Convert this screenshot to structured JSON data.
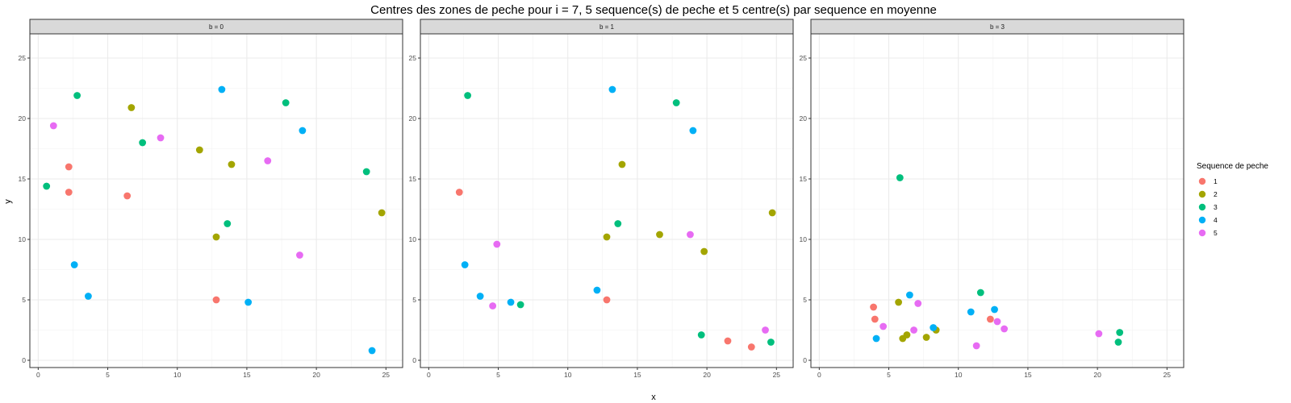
{
  "chart_data": {
    "type": "scatter",
    "title": "Centres des zones de peche pour i = 7, 5 sequence(s) de peche et 5 centre(s) par sequence en moyenne",
    "xlabel": "x",
    "ylabel": "y",
    "xlim": [
      -0.6,
      26.2
    ],
    "ylim": [
      -0.6,
      27.0
    ],
    "x_ticks": [
      0,
      5,
      10,
      15,
      20,
      25
    ],
    "y_ticks": [
      0,
      5,
      10,
      15,
      20,
      25
    ],
    "grid": true,
    "legend": {
      "title": "Sequence de peche",
      "placement": "right",
      "entries": [
        {
          "label": "1",
          "color": "#F8766D"
        },
        {
          "label": "2",
          "color": "#A3A500"
        },
        {
          "label": "3",
          "color": "#00BF7D"
        },
        {
          "label": "4",
          "color": "#00B0F6"
        },
        {
          "label": "5",
          "color": "#E76BF3"
        }
      ]
    },
    "panels": [
      {
        "strip": "b = 0",
        "points": [
          {
            "x": 2.2,
            "y": 16.0,
            "seq": "1"
          },
          {
            "x": 2.2,
            "y": 13.9,
            "seq": "1"
          },
          {
            "x": 6.4,
            "y": 13.6,
            "seq": "1"
          },
          {
            "x": 12.8,
            "y": 5.0,
            "seq": "1"
          },
          {
            "x": 6.7,
            "y": 20.9,
            "seq": "2"
          },
          {
            "x": 11.6,
            "y": 17.4,
            "seq": "2"
          },
          {
            "x": 13.9,
            "y": 16.2,
            "seq": "2"
          },
          {
            "x": 12.8,
            "y": 10.2,
            "seq": "2"
          },
          {
            "x": 24.7,
            "y": 12.2,
            "seq": "2"
          },
          {
            "x": 2.8,
            "y": 21.9,
            "seq": "3"
          },
          {
            "x": 7.5,
            "y": 18.0,
            "seq": "3"
          },
          {
            "x": 0.6,
            "y": 14.4,
            "seq": "3"
          },
          {
            "x": 13.6,
            "y": 11.3,
            "seq": "3"
          },
          {
            "x": 17.8,
            "y": 21.3,
            "seq": "3"
          },
          {
            "x": 23.6,
            "y": 15.6,
            "seq": "3"
          },
          {
            "x": 13.2,
            "y": 22.4,
            "seq": "4"
          },
          {
            "x": 19.0,
            "y": 19.0,
            "seq": "4"
          },
          {
            "x": 2.6,
            "y": 7.9,
            "seq": "4"
          },
          {
            "x": 3.6,
            "y": 5.3,
            "seq": "4"
          },
          {
            "x": 15.1,
            "y": 4.8,
            "seq": "4"
          },
          {
            "x": 24.0,
            "y": 0.8,
            "seq": "4"
          },
          {
            "x": 1.1,
            "y": 19.4,
            "seq": "5"
          },
          {
            "x": 8.8,
            "y": 18.4,
            "seq": "5"
          },
          {
            "x": 16.5,
            "y": 16.5,
            "seq": "5"
          },
          {
            "x": 18.8,
            "y": 8.7,
            "seq": "5"
          }
        ]
      },
      {
        "strip": "b = 1",
        "points": [
          {
            "x": 2.2,
            "y": 13.9,
            "seq": "1"
          },
          {
            "x": 12.8,
            "y": 5.0,
            "seq": "1"
          },
          {
            "x": 21.5,
            "y": 1.6,
            "seq": "1"
          },
          {
            "x": 23.2,
            "y": 1.1,
            "seq": "1"
          },
          {
            "x": 13.9,
            "y": 16.2,
            "seq": "2"
          },
          {
            "x": 12.8,
            "y": 10.2,
            "seq": "2"
          },
          {
            "x": 16.6,
            "y": 10.4,
            "seq": "2"
          },
          {
            "x": 19.8,
            "y": 9.0,
            "seq": "2"
          },
          {
            "x": 24.7,
            "y": 12.2,
            "seq": "2"
          },
          {
            "x": 2.8,
            "y": 21.9,
            "seq": "3"
          },
          {
            "x": 17.8,
            "y": 21.3,
            "seq": "3"
          },
          {
            "x": 13.6,
            "y": 11.3,
            "seq": "3"
          },
          {
            "x": 6.6,
            "y": 4.6,
            "seq": "3"
          },
          {
            "x": 19.6,
            "y": 2.1,
            "seq": "3"
          },
          {
            "x": 24.6,
            "y": 1.5,
            "seq": "3"
          },
          {
            "x": 13.2,
            "y": 22.4,
            "seq": "4"
          },
          {
            "x": 19.0,
            "y": 19.0,
            "seq": "4"
          },
          {
            "x": 2.6,
            "y": 7.9,
            "seq": "4"
          },
          {
            "x": 3.7,
            "y": 5.3,
            "seq": "4"
          },
          {
            "x": 5.9,
            "y": 4.8,
            "seq": "4"
          },
          {
            "x": 12.1,
            "y": 5.8,
            "seq": "4"
          },
          {
            "x": 4.9,
            "y": 9.6,
            "seq": "5"
          },
          {
            "x": 4.6,
            "y": 4.5,
            "seq": "5"
          },
          {
            "x": 18.8,
            "y": 10.4,
            "seq": "5"
          },
          {
            "x": 24.2,
            "y": 2.5,
            "seq": "5"
          }
        ]
      },
      {
        "strip": "b = 3",
        "points": [
          {
            "x": 3.9,
            "y": 4.4,
            "seq": "1"
          },
          {
            "x": 4.0,
            "y": 3.4,
            "seq": "1"
          },
          {
            "x": 12.3,
            "y": 3.4,
            "seq": "1"
          },
          {
            "x": 5.7,
            "y": 4.8,
            "seq": "2"
          },
          {
            "x": 6.0,
            "y": 1.8,
            "seq": "2"
          },
          {
            "x": 6.3,
            "y": 2.1,
            "seq": "2"
          },
          {
            "x": 7.7,
            "y": 1.9,
            "seq": "2"
          },
          {
            "x": 8.4,
            "y": 2.5,
            "seq": "2"
          },
          {
            "x": 5.8,
            "y": 15.1,
            "seq": "3"
          },
          {
            "x": 11.6,
            "y": 5.6,
            "seq": "3"
          },
          {
            "x": 21.6,
            "y": 2.3,
            "seq": "3"
          },
          {
            "x": 21.5,
            "y": 1.5,
            "seq": "3"
          },
          {
            "x": 6.5,
            "y": 5.4,
            "seq": "4"
          },
          {
            "x": 8.2,
            "y": 2.7,
            "seq": "4"
          },
          {
            "x": 10.9,
            "y": 4.0,
            "seq": "4"
          },
          {
            "x": 12.6,
            "y": 4.2,
            "seq": "4"
          },
          {
            "x": 4.1,
            "y": 1.8,
            "seq": "4"
          },
          {
            "x": 4.6,
            "y": 2.8,
            "seq": "5"
          },
          {
            "x": 6.8,
            "y": 2.5,
            "seq": "5"
          },
          {
            "x": 7.1,
            "y": 4.7,
            "seq": "5"
          },
          {
            "x": 12.8,
            "y": 3.2,
            "seq": "5"
          },
          {
            "x": 13.3,
            "y": 2.6,
            "seq": "5"
          },
          {
            "x": 11.3,
            "y": 1.2,
            "seq": "5"
          },
          {
            "x": 20.1,
            "y": 2.2,
            "seq": "5"
          }
        ]
      }
    ]
  }
}
